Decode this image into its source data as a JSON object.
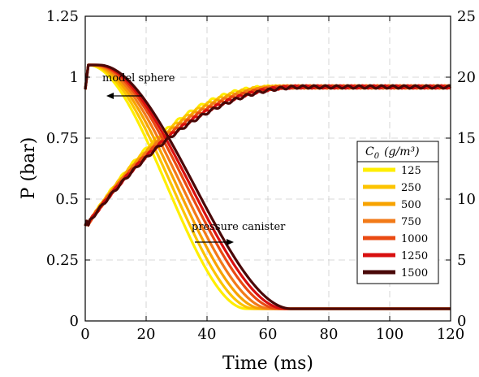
{
  "chart_data": {
    "type": "line",
    "xlabel": "Time (ms)",
    "ylabel": "P (bar)",
    "xlim": [
      0,
      120
    ],
    "ylim": [
      0,
      1.25
    ],
    "y2lim": [
      0,
      25
    ],
    "xticks": [
      "0",
      "20",
      "40",
      "60",
      "80",
      "100",
      "120"
    ],
    "yticks": [
      "0",
      "0.25",
      "0.5",
      "0.75",
      "1",
      "1.25"
    ],
    "y2ticks": [
      "0",
      "5",
      "10",
      "15",
      "20",
      "25"
    ],
    "grid": true,
    "legend": {
      "title_main": "C",
      "title_sub": "0",
      "title_units": "(g/m³)",
      "placement": "right",
      "entries": [
        "125",
        "250",
        "500",
        "750",
        "1000",
        "1250",
        "1500"
      ]
    },
    "annotations": [
      {
        "text": "model sphere"
      },
      {
        "text": "pressure canister"
      }
    ],
    "colors": [
      "#ffee00",
      "#fcc400",
      "#f7a300",
      "#f27a18",
      "#ea4a12",
      "#d81010",
      "#4a0808"
    ],
    "series_params": [
      {
        "name": "125",
        "canister_delay_ms": 0,
        "sphere_delay_ms": 0
      },
      {
        "name": "250",
        "canister_delay_ms": 2.5,
        "sphere_delay_ms": 2
      },
      {
        "name": "500",
        "canister_delay_ms": 5,
        "sphere_delay_ms": 4
      },
      {
        "name": "750",
        "canister_delay_ms": 7.5,
        "sphere_delay_ms": 6
      },
      {
        "name": "1000",
        "canister_delay_ms": 10,
        "sphere_delay_ms": 8
      },
      {
        "name": "1250",
        "canister_delay_ms": 12,
        "sphere_delay_ms": 10
      },
      {
        "name": "1500",
        "canister_delay_ms": 14,
        "sphere_delay_ms": 12
      }
    ],
    "pressure_canister": {
      "start_bar": 1.05,
      "end_bar": 0.05
    },
    "model_sphere": {
      "start_bar": 0.41,
      "end_bar": 0.96
    }
  }
}
